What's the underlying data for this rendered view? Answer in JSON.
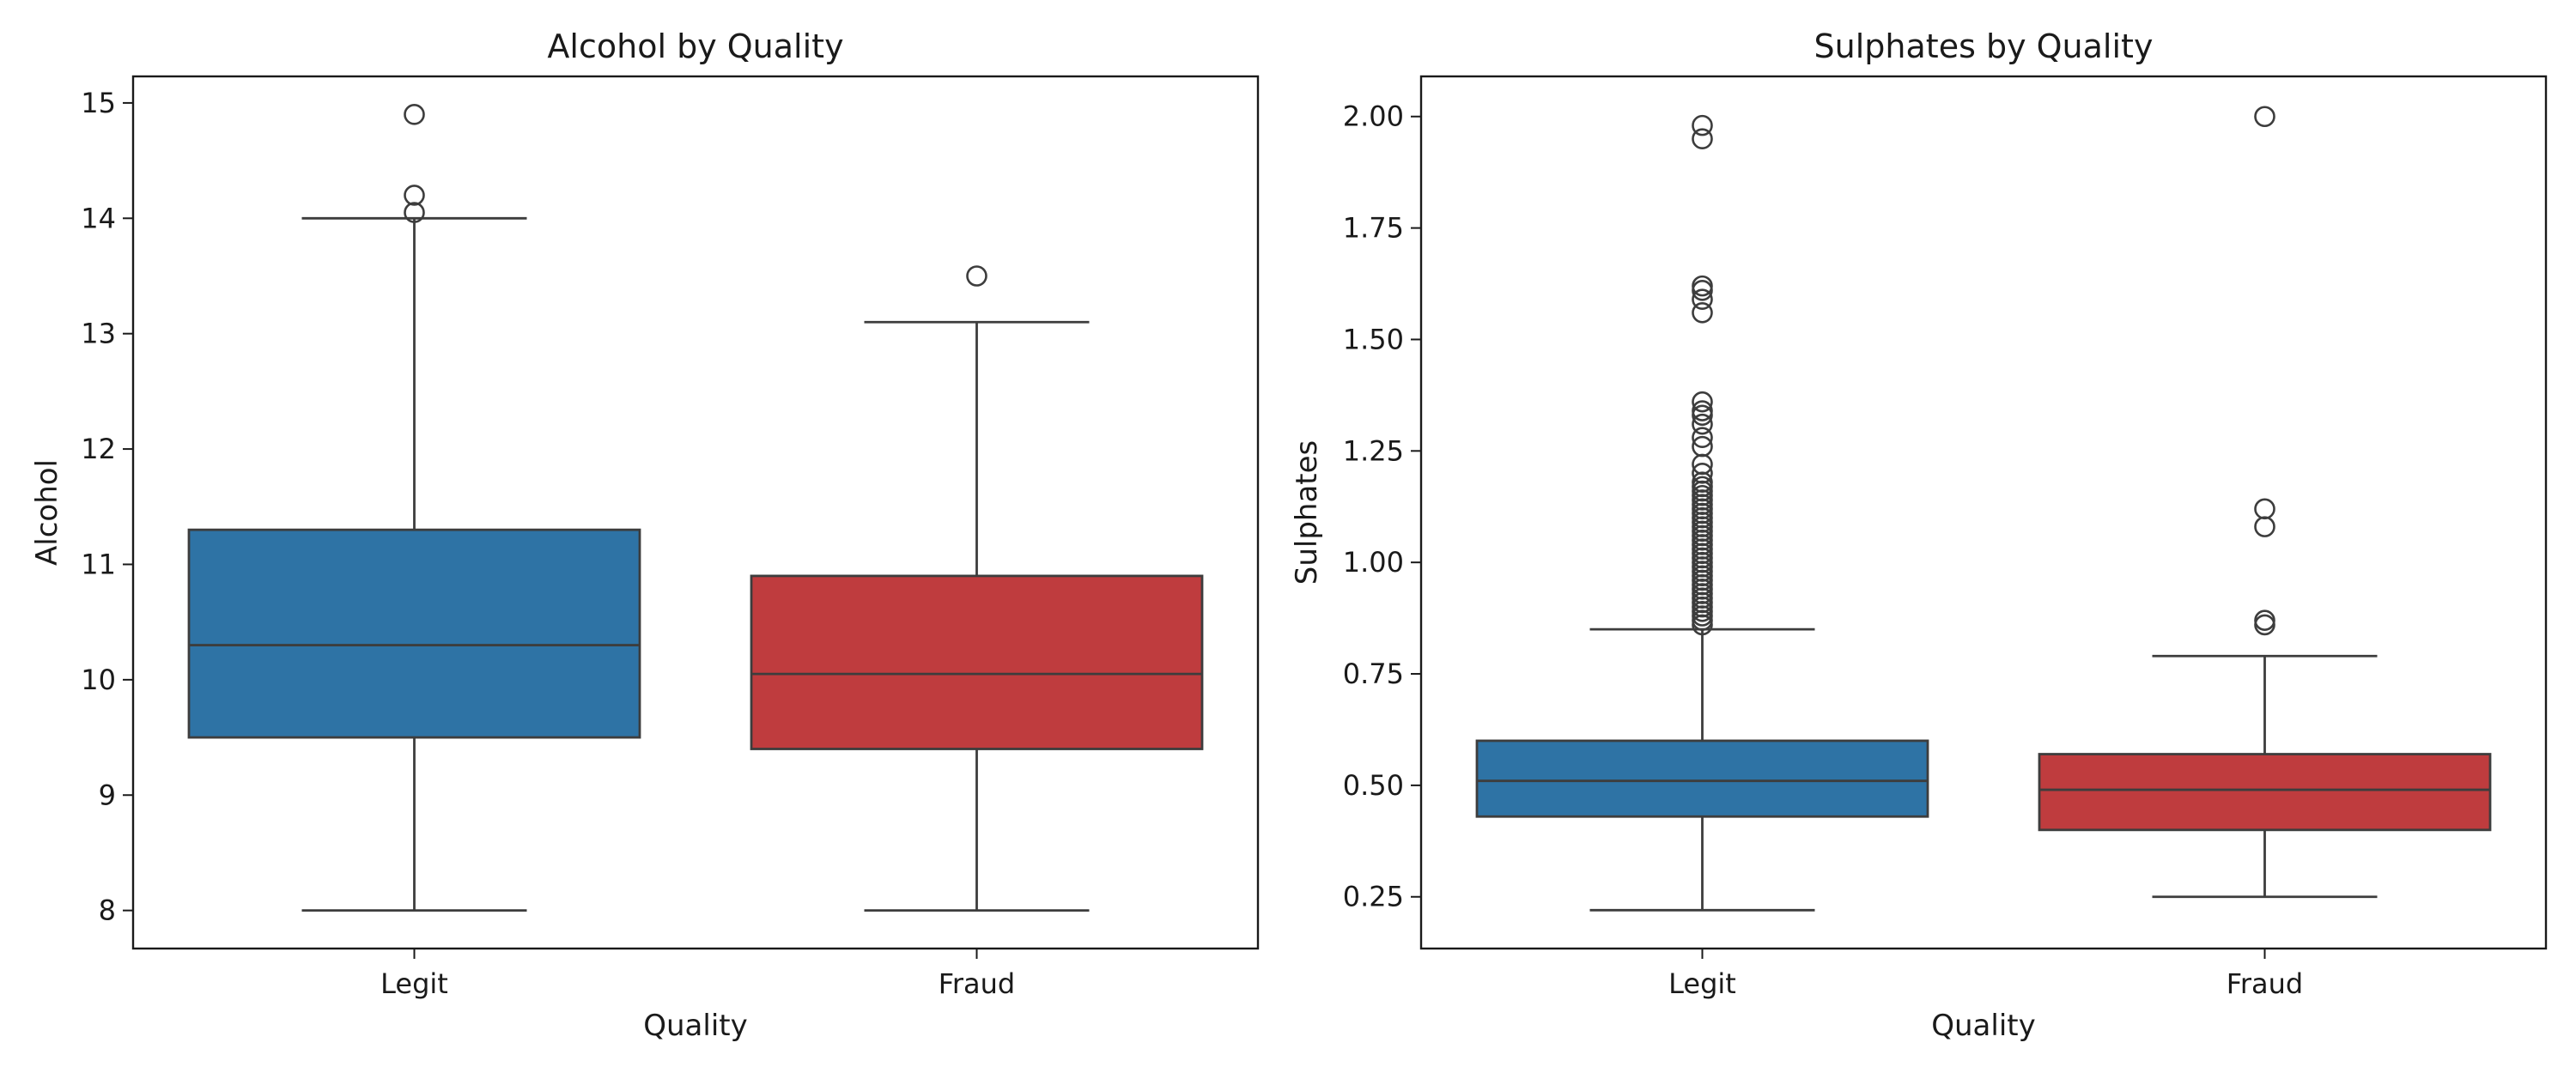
{
  "chart_data": [
    {
      "type": "box",
      "title": "Alcohol by Quality",
      "xlabel": "Quality",
      "ylabel": "Alcohol",
      "categories": [
        "Legit",
        "Fraud"
      ],
      "colors": [
        "#2e73a5",
        "#bf3c3e"
      ],
      "edge_color": "#3d3d3d",
      "ylim": [
        7.67,
        15.23
      ],
      "yticks": [
        8,
        9,
        10,
        11,
        12,
        13,
        14,
        15
      ],
      "ytick_labels": [
        "8",
        "9",
        "10",
        "11",
        "12",
        "13",
        "14",
        "15"
      ],
      "grid": false,
      "boxes": [
        {
          "label": "Legit",
          "whislo": 8.0,
          "q1": 9.5,
          "median": 10.3,
          "q3": 11.3,
          "whishi": 14.0,
          "fliers": [
            14.05,
            14.2,
            14.9
          ]
        },
        {
          "label": "Fraud",
          "whislo": 8.0,
          "q1": 9.4,
          "median": 10.05,
          "q3": 10.9,
          "whishi": 13.1,
          "fliers": [
            13.5
          ]
        }
      ]
    },
    {
      "type": "box",
      "title": "Sulphates by Quality",
      "xlabel": "Quality",
      "ylabel": "Sulphates",
      "categories": [
        "Legit",
        "Fraud"
      ],
      "colors": [
        "#2e73a5",
        "#bf3c3e"
      ],
      "edge_color": "#3d3d3d",
      "ylim": [
        0.134,
        2.09
      ],
      "yticks": [
        0.25,
        0.5,
        0.75,
        1.0,
        1.25,
        1.5,
        1.75,
        2.0
      ],
      "ytick_labels": [
        "0.25",
        "0.50",
        "0.75",
        "1.00",
        "1.25",
        "1.50",
        "1.75",
        "2.00"
      ],
      "grid": false,
      "boxes": [
        {
          "label": "Legit",
          "whislo": 0.22,
          "q1": 0.43,
          "median": 0.51,
          "q3": 0.6,
          "whishi": 0.85,
          "fliers": [
            0.86,
            0.87,
            0.88,
            0.89,
            0.9,
            0.91,
            0.92,
            0.93,
            0.94,
            0.95,
            0.96,
            0.97,
            0.98,
            0.99,
            1.0,
            1.01,
            1.02,
            1.03,
            1.04,
            1.05,
            1.06,
            1.07,
            1.08,
            1.09,
            1.1,
            1.11,
            1.12,
            1.13,
            1.14,
            1.15,
            1.16,
            1.17,
            1.18,
            1.2,
            1.22,
            1.26,
            1.28,
            1.31,
            1.33,
            1.34,
            1.36,
            1.56,
            1.59,
            1.61,
            1.62,
            1.95,
            1.98
          ]
        },
        {
          "label": "Fraud",
          "whislo": 0.25,
          "q1": 0.4,
          "median": 0.49,
          "q3": 0.57,
          "whishi": 0.79,
          "fliers": [
            0.86,
            0.87,
            1.08,
            1.12,
            2.0
          ]
        }
      ]
    }
  ]
}
